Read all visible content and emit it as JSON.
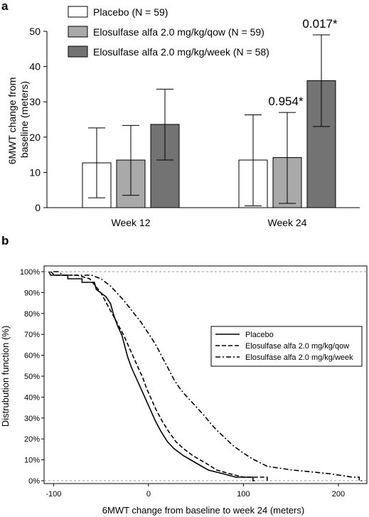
{
  "figure": {
    "panel_a_label": "a",
    "panel_b_label": "b"
  },
  "chart_data": [
    {
      "type": "bar",
      "panel": "a",
      "ylabel": "6MWT change from baseline (meters)",
      "ylim": [
        0,
        50
      ],
      "yticks": [
        0,
        10,
        20,
        30,
        40,
        50
      ],
      "categories": [
        "Week 12",
        "Week 24"
      ],
      "legend_position": "top-left",
      "series": [
        {
          "name": "Placebo (N = 59)",
          "color": "#ffffff",
          "values": [
            12.7,
            13.5
          ],
          "err_low": [
            2.8,
            0.5
          ],
          "err_high": [
            22.6,
            26.3
          ]
        },
        {
          "name": "Elosulfase alfa 2.0 mg/kg/qow (N = 59)",
          "color": "#a9a9a9",
          "values": [
            13.5,
            14.2
          ],
          "err_low": [
            3.5,
            1.2
          ],
          "err_high": [
            23.3,
            27.0
          ]
        },
        {
          "name": "Elosulfase alfa 2.0 mg/kg/week (N = 58)",
          "color": "#737373",
          "values": [
            23.6,
            36.0
          ],
          "err_low": [
            13.5,
            23.0
          ],
          "err_high": [
            33.6,
            49.0
          ]
        }
      ],
      "annotations": [
        {
          "text": "0.954*",
          "category": "Week 24",
          "series": 1
        },
        {
          "text": "0.017*",
          "category": "Week 24",
          "series": 2
        }
      ]
    },
    {
      "type": "line",
      "panel": "b",
      "xlabel": "6MWT change from baseline to week 24 (meters)",
      "ylabel": "Distrubution function (%)",
      "xlim": [
        -110,
        230
      ],
      "ylim": [
        0,
        100
      ],
      "xticks": [
        -100,
        0,
        100,
        200
      ],
      "yticks": [
        0,
        10,
        20,
        30,
        40,
        50,
        60,
        70,
        80,
        90,
        100
      ],
      "ytick_suffix": "%",
      "grid": "dashed reference lines at 0% and 100%",
      "legend_position": "right",
      "series": [
        {
          "name": "Placebo",
          "dash": "solid",
          "points": [
            [
              -105,
              100
            ],
            [
              -103,
              98.3
            ],
            [
              -85,
              98.3
            ],
            [
              -85,
              96.6
            ],
            [
              -70,
              96.6
            ],
            [
              -70,
              94.9
            ],
            [
              -57,
              94.9
            ],
            [
              -55,
              91.5
            ],
            [
              -45,
              88.1
            ],
            [
              -40,
              84.7
            ],
            [
              -37,
              79.7
            ],
            [
              -33,
              74.6
            ],
            [
              -28,
              69.5
            ],
            [
              -25,
              64.4
            ],
            [
              -22,
              59.3
            ],
            [
              -18,
              54.2
            ],
            [
              -13,
              49.2
            ],
            [
              -8,
              44.1
            ],
            [
              -3,
              39
            ],
            [
              2,
              33.9
            ],
            [
              7,
              28.8
            ],
            [
              13,
              23.7
            ],
            [
              20,
              18.6
            ],
            [
              27,
              15.3
            ],
            [
              37,
              11.9
            ],
            [
              50,
              8.5
            ],
            [
              63,
              5.1
            ],
            [
              78,
              3.4
            ],
            [
              92,
              1.7
            ],
            [
              110,
              1.7
            ],
            [
              110,
              0
            ],
            [
              112,
              0
            ]
          ]
        },
        {
          "name": "Elosulfase alfa 2.0 mg/kg/qow",
          "dash": "6,3",
          "points": [
            [
              -103,
              100
            ],
            [
              -99,
              98.3
            ],
            [
              -75,
              98.3
            ],
            [
              -62,
              96.6
            ],
            [
              -56,
              93.2
            ],
            [
              -50,
              89.8
            ],
            [
              -44,
              84.7
            ],
            [
              -38,
              79.7
            ],
            [
              -32,
              74.6
            ],
            [
              -26,
              69.5
            ],
            [
              -21,
              64.4
            ],
            [
              -16,
              59.3
            ],
            [
              -11,
              54.2
            ],
            [
              -6,
              49.2
            ],
            [
              -2,
              44.1
            ],
            [
              3,
              39
            ],
            [
              8,
              33.9
            ],
            [
              14,
              28.8
            ],
            [
              21,
              23.7
            ],
            [
              29,
              18.6
            ],
            [
              37,
              15.3
            ],
            [
              47,
              11.9
            ],
            [
              60,
              8.5
            ],
            [
              72,
              5.1
            ],
            [
              85,
              3.4
            ],
            [
              100,
              1.7
            ],
            [
              125,
              1.7
            ],
            [
              125,
              0
            ],
            [
              127,
              0
            ]
          ]
        },
        {
          "name": "Elosulfase alfa 2.0 mg/kg/week",
          "dash": "7,3,2,3",
          "points": [
            [
              -100,
              100
            ],
            [
              -95,
              100
            ],
            [
              -90,
              98.3
            ],
            [
              -60,
              98.3
            ],
            [
              -50,
              96.6
            ],
            [
              -40,
              93.1
            ],
            [
              -33,
              89.7
            ],
            [
              -26,
              86.2
            ],
            [
              -20,
              82.8
            ],
            [
              -14,
              79.3
            ],
            [
              -8,
              75.9
            ],
            [
              -3,
              72.4
            ],
            [
              2,
              69
            ],
            [
              7,
              65.5
            ],
            [
              11,
              62.1
            ],
            [
              15,
              58.6
            ],
            [
              19,
              55.2
            ],
            [
              23,
              51.7
            ],
            [
              27,
              48.3
            ],
            [
              32,
              44.8
            ],
            [
              38,
              41.4
            ],
            [
              45,
              37.9
            ],
            [
              52,
              34.5
            ],
            [
              59,
              31
            ],
            [
              65,
              27.6
            ],
            [
              72,
              24.1
            ],
            [
              80,
              20.7
            ],
            [
              88,
              17.2
            ],
            [
              98,
              13.8
            ],
            [
              110,
              10.3
            ],
            [
              125,
              6.9
            ],
            [
              150,
              5.2
            ],
            [
              190,
              3.4
            ],
            [
              215,
              1.7
            ],
            [
              222,
              1.7
            ],
            [
              222,
              0
            ],
            [
              225,
              0
            ]
          ]
        }
      ]
    }
  ]
}
